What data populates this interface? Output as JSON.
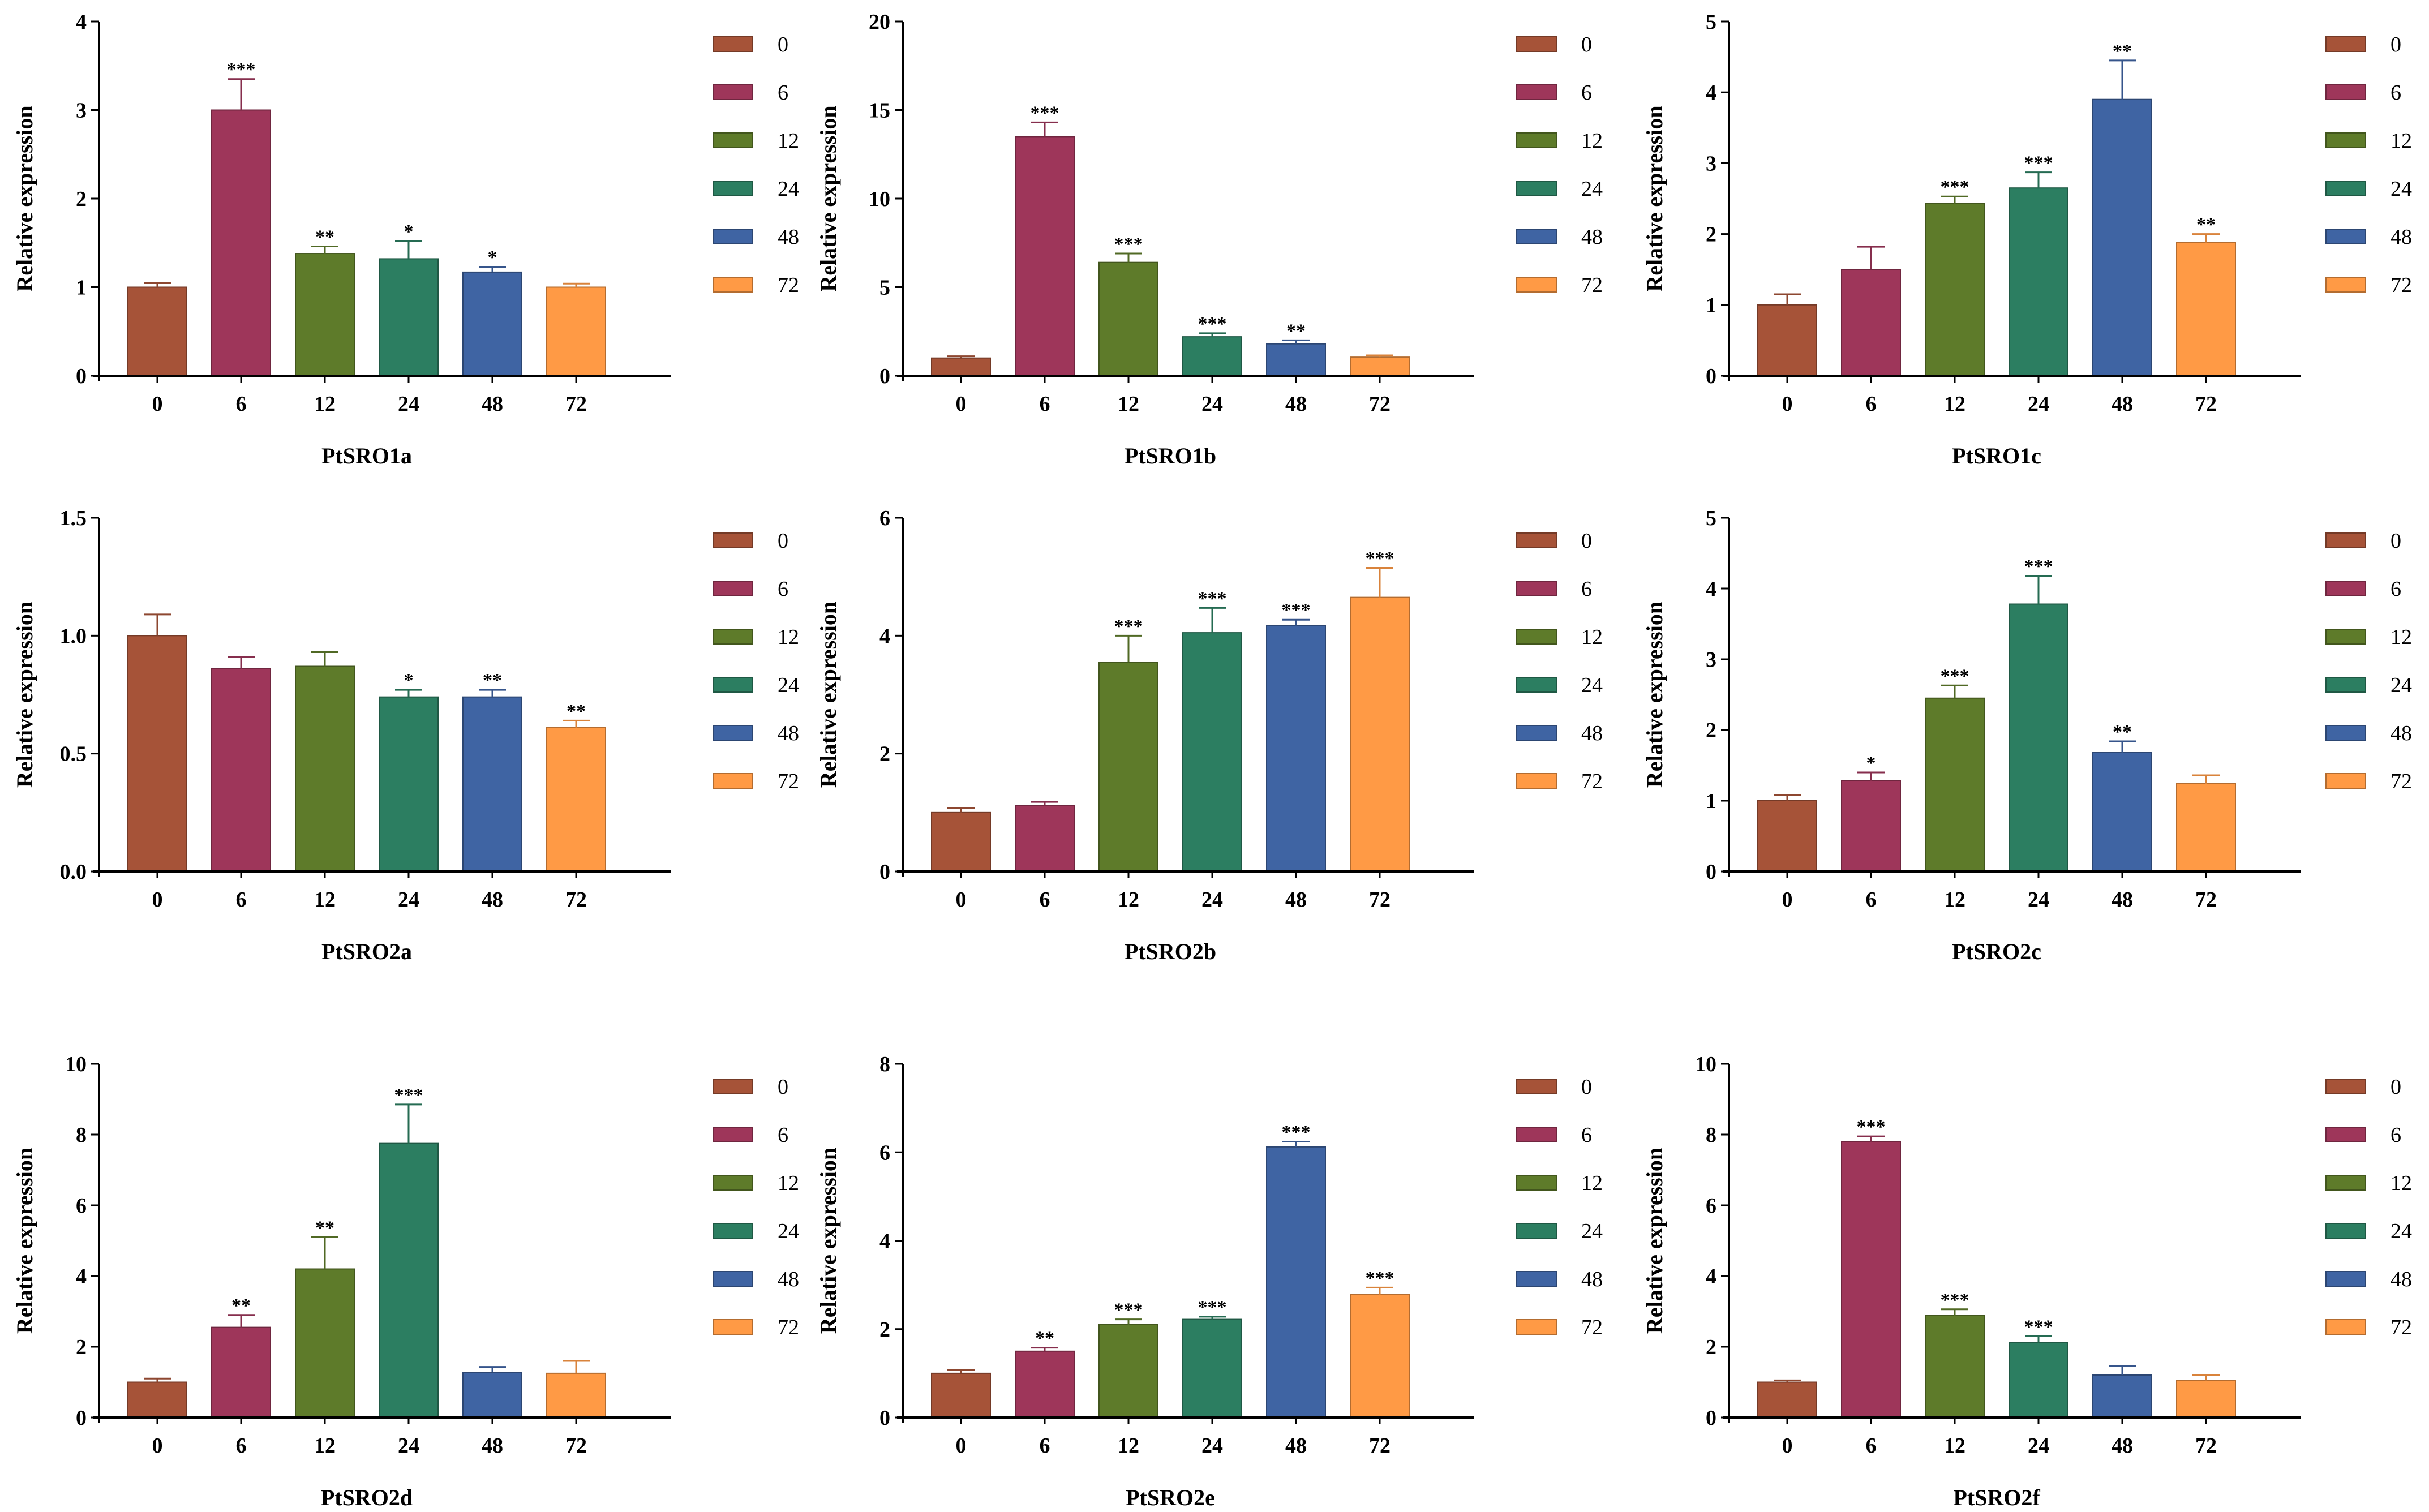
{
  "colors": {
    "0": "#A65338",
    "6": "#9E365A",
    "12": "#5E7B2A",
    "24": "#2C7E61",
    "48": "#3F64A3",
    "72": "#FF9A45"
  },
  "legend": [
    "0",
    "6",
    "12",
    "24",
    "48",
    "72"
  ],
  "chart_data": [
    {
      "type": "bar",
      "title": "PtSRO1a",
      "xlabel": "",
      "ylabel": "Relative expression",
      "categories": [
        "0",
        "6",
        "12",
        "24",
        "48",
        "72"
      ],
      "values": [
        1.0,
        3.0,
        1.38,
        1.32,
        1.17,
        1.0
      ],
      "errors": [
        0.05,
        0.35,
        0.08,
        0.2,
        0.06,
        0.04
      ],
      "significance": [
        "",
        "***",
        "**",
        "*",
        "*",
        ""
      ],
      "ylim": [
        0,
        4
      ],
      "yticks": [
        "0",
        "1",
        "2",
        "3",
        "4"
      ],
      "legend": "right",
      "grid": false
    },
    {
      "type": "bar",
      "title": "PtSRO1b",
      "xlabel": "",
      "ylabel": "Relative expression",
      "categories": [
        "0",
        "6",
        "12",
        "24",
        "48",
        "72"
      ],
      "values": [
        1.0,
        13.5,
        6.4,
        2.2,
        1.8,
        1.05
      ],
      "errors": [
        0.1,
        0.8,
        0.5,
        0.2,
        0.2,
        0.1
      ],
      "significance": [
        "",
        "***",
        "***",
        "***",
        "**",
        ""
      ],
      "ylim": [
        0,
        20
      ],
      "yticks": [
        "0",
        "5",
        "10",
        "15",
        "20"
      ],
      "legend": "right",
      "grid": false
    },
    {
      "type": "bar",
      "title": "PtSRO1c",
      "xlabel": "",
      "ylabel": "Relative expression",
      "categories": [
        "0",
        "6",
        "12",
        "24",
        "48",
        "72"
      ],
      "values": [
        1.0,
        1.5,
        2.43,
        2.65,
        3.9,
        1.88
      ],
      "errors": [
        0.15,
        0.32,
        0.1,
        0.22,
        0.55,
        0.12
      ],
      "significance": [
        "",
        "",
        "***",
        "***",
        "**",
        "**"
      ],
      "ylim": [
        0,
        5
      ],
      "yticks": [
        "0",
        "1",
        "2",
        "3",
        "4",
        "5"
      ],
      "legend": "right",
      "grid": false
    },
    {
      "type": "bar",
      "title": "PtSRO2a",
      "xlabel": "",
      "ylabel": "Relative expression",
      "categories": [
        "0",
        "6",
        "12",
        "24",
        "48",
        "72"
      ],
      "values": [
        1.0,
        0.86,
        0.87,
        0.74,
        0.74,
        0.61
      ],
      "errors": [
        0.09,
        0.05,
        0.06,
        0.03,
        0.03,
        0.03
      ],
      "significance": [
        "",
        "",
        "",
        "*",
        "**",
        "**"
      ],
      "ylim": [
        0,
        1.5
      ],
      "yticks": [
        "0.0",
        "0.5",
        "1.0",
        "1.5"
      ],
      "legend": "right",
      "grid": false
    },
    {
      "type": "bar",
      "title": "PtSRO2b",
      "xlabel": "",
      "ylabel": "Relative expression",
      "categories": [
        "0",
        "6",
        "12",
        "24",
        "48",
        "72"
      ],
      "values": [
        1.0,
        1.12,
        3.55,
        4.05,
        4.17,
        4.65
      ],
      "errors": [
        0.08,
        0.06,
        0.45,
        0.42,
        0.1,
        0.5
      ],
      "significance": [
        "",
        "",
        "***",
        "***",
        "***",
        "***"
      ],
      "ylim": [
        0,
        6
      ],
      "yticks": [
        "0",
        "2",
        "4",
        "6"
      ],
      "legend": "right",
      "grid": false
    },
    {
      "type": "bar",
      "title": "PtSRO2c",
      "xlabel": "",
      "ylabel": "Relative expression",
      "categories": [
        "0",
        "6",
        "12",
        "24",
        "48",
        "72"
      ],
      "values": [
        1.0,
        1.28,
        2.45,
        3.78,
        1.68,
        1.24
      ],
      "errors": [
        0.08,
        0.12,
        0.18,
        0.4,
        0.16,
        0.12
      ],
      "significance": [
        "",
        "*",
        "***",
        "***",
        "**",
        ""
      ],
      "ylim": [
        0,
        5
      ],
      "yticks": [
        "0",
        "1",
        "2",
        "3",
        "4",
        "5"
      ],
      "legend": "right",
      "grid": false
    },
    {
      "type": "bar",
      "title": "PtSRO2d",
      "xlabel": "",
      "ylabel": "Relative expression",
      "categories": [
        "0",
        "6",
        "12",
        "24",
        "48",
        "72"
      ],
      "values": [
        1.0,
        2.55,
        4.2,
        7.75,
        1.28,
        1.25
      ],
      "errors": [
        0.1,
        0.35,
        0.9,
        1.1,
        0.15,
        0.35
      ],
      "significance": [
        "",
        "**",
        "**",
        "***",
        "",
        ""
      ],
      "ylim": [
        0,
        10
      ],
      "yticks": [
        "0",
        "2",
        "4",
        "6",
        "8",
        "10"
      ],
      "legend": "right",
      "grid": false
    },
    {
      "type": "bar",
      "title": "PtSRO2e",
      "xlabel": "",
      "ylabel": "Relative expression",
      "categories": [
        "0",
        "6",
        "12",
        "24",
        "48",
        "72"
      ],
      "values": [
        1.0,
        1.5,
        2.1,
        2.22,
        6.12,
        2.78
      ],
      "errors": [
        0.08,
        0.08,
        0.12,
        0.06,
        0.12,
        0.16
      ],
      "significance": [
        "",
        "**",
        "***",
        "***",
        "***",
        "***"
      ],
      "ylim": [
        0,
        8
      ],
      "yticks": [
        "0",
        "2",
        "4",
        "6",
        "8"
      ],
      "legend": "right",
      "grid": false
    },
    {
      "type": "bar",
      "title": "PtSRO2f",
      "xlabel": "",
      "ylabel": "Relative expression",
      "categories": [
        "0",
        "6",
        "12",
        "24",
        "48",
        "72"
      ],
      "values": [
        1.0,
        7.8,
        2.88,
        2.12,
        1.2,
        1.05
      ],
      "errors": [
        0.05,
        0.15,
        0.18,
        0.18,
        0.26,
        0.15
      ],
      "significance": [
        "",
        "***",
        "***",
        "***",
        "",
        ""
      ],
      "ylim": [
        0,
        10
      ],
      "yticks": [
        "0",
        "2",
        "4",
        "6",
        "8",
        "10"
      ],
      "legend": "right",
      "grid": false
    }
  ]
}
